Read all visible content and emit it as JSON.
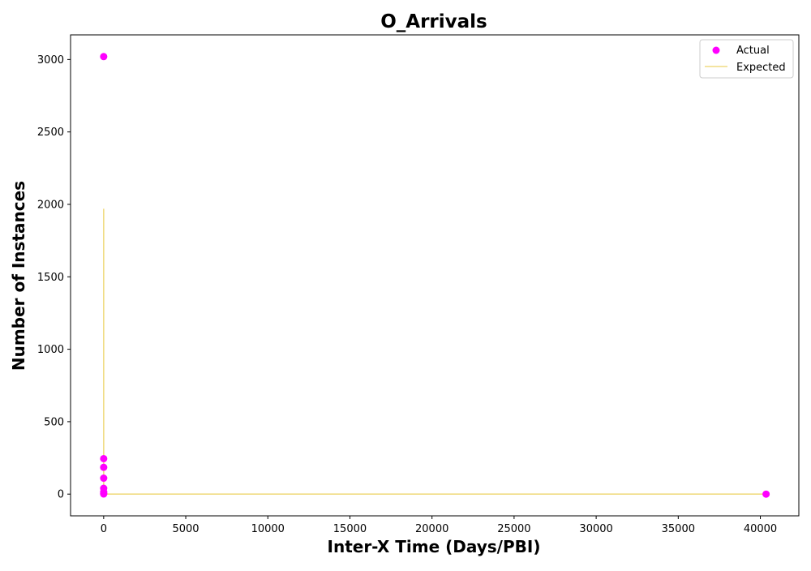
{
  "chart_data": {
    "type": "scatter",
    "title": "O_Arrivals",
    "xlabel": "Inter-X Time (Days/PBI)",
    "ylabel": "Number of Instances",
    "xlim": [
      -2017,
      42345
    ],
    "ylim": [
      -150,
      3170
    ],
    "x_ticks": [
      0,
      5000,
      10000,
      15000,
      20000,
      25000,
      30000,
      35000,
      40000
    ],
    "y_ticks": [
      0,
      500,
      1000,
      1500,
      2000,
      2500,
      3000
    ],
    "grid": false,
    "legend": {
      "position": "top-right",
      "entries": [
        "Actual",
        "Expected"
      ]
    },
    "series": [
      {
        "name": "Actual",
        "kind": "scatter",
        "color": "#ff00ff",
        "points": [
          [
            1,
            3020
          ],
          [
            1,
            245
          ],
          [
            1,
            185
          ],
          [
            1,
            110
          ],
          [
            1,
            40
          ],
          [
            1,
            15
          ],
          [
            1,
            5
          ],
          [
            1,
            1
          ],
          [
            40350,
            0
          ]
        ]
      },
      {
        "name": "Expected",
        "kind": "line",
        "color": "#f0dc82",
        "points": [
          [
            0,
            1970
          ],
          [
            1,
            0
          ],
          [
            40350,
            0
          ]
        ]
      }
    ]
  }
}
